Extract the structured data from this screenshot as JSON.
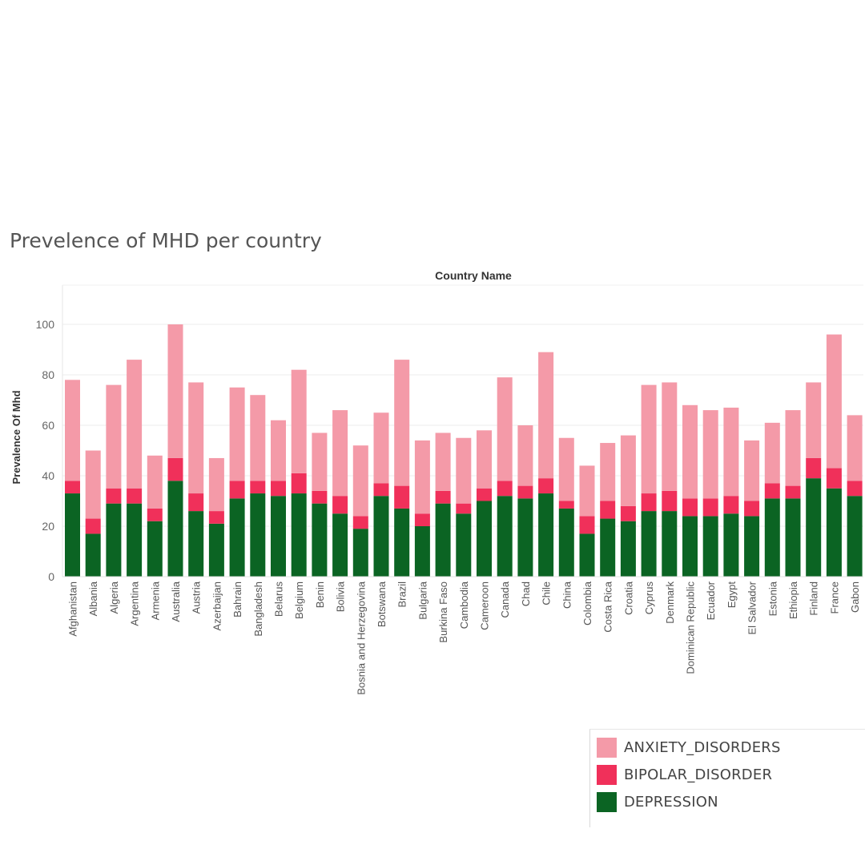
{
  "chart_data": {
    "type": "bar",
    "stacked": true,
    "title": "Prevelence of MHD per country",
    "column_header": "Country Name",
    "ylabel": "Prevalence Of Mhd",
    "ylim": [
      0,
      115
    ],
    "yticks": [
      0,
      20,
      40,
      60,
      80,
      100
    ],
    "grid": "horizontal",
    "legend_position": "bottom-right",
    "categories": [
      "Afghanistan",
      "Albania",
      "Algeria",
      "Argentina",
      "Armenia",
      "Australia",
      "Austria",
      "Azerbaijan",
      "Bahrain",
      "Bangladesh",
      "Belarus",
      "Belgium",
      "Benin",
      "Bolivia",
      "Bosnia and Herzegovina",
      "Botswana",
      "Brazil",
      "Bulgaria",
      "Burkina Faso",
      "Cambodia",
      "Cameroon",
      "Canada",
      "Chad",
      "Chile",
      "China",
      "Colombia",
      "Costa Rica",
      "Croatia",
      "Cyprus",
      "Denmark",
      "Dominican Republic",
      "Ecuador",
      "Egypt",
      "El Salvador",
      "Estonia",
      "Ethiopia",
      "Finland",
      "France",
      "Gabon"
    ],
    "series": [
      {
        "name": "DEPRESSION",
        "color": "#0b6423",
        "values": [
          33,
          17,
          29,
          29,
          22,
          38,
          26,
          21,
          31,
          33,
          32,
          33,
          29,
          25,
          19,
          32,
          27,
          20,
          29,
          25,
          30,
          32,
          31,
          33,
          27,
          17,
          23,
          22,
          26,
          26,
          24,
          24,
          25,
          24,
          31,
          31,
          39,
          35,
          32
        ]
      },
      {
        "name": "BIPOLAR_DISORDER",
        "color": "#f0305a",
        "values": [
          5,
          6,
          6,
          6,
          5,
          9,
          7,
          5,
          7,
          5,
          6,
          8,
          5,
          7,
          5,
          5,
          9,
          5,
          5,
          4,
          5,
          6,
          5,
          6,
          3,
          7,
          7,
          6,
          7,
          8,
          7,
          7,
          7,
          6,
          6,
          5,
          8,
          8,
          6
        ]
      },
      {
        "name": "ANXIETY_DISORDERS",
        "color": "#f49aa8",
        "values": [
          40,
          27,
          41,
          51,
          21,
          53,
          44,
          21,
          37,
          34,
          24,
          41,
          23,
          34,
          28,
          28,
          50,
          29,
          23,
          26,
          23,
          41,
          24,
          50,
          25,
          20,
          23,
          28,
          43,
          43,
          37,
          35,
          35,
          24,
          24,
          30,
          30,
          53,
          26
        ]
      }
    ],
    "legend": [
      "ANXIETY_DISORDERS",
      "BIPOLAR_DISORDER",
      "DEPRESSION"
    ]
  }
}
